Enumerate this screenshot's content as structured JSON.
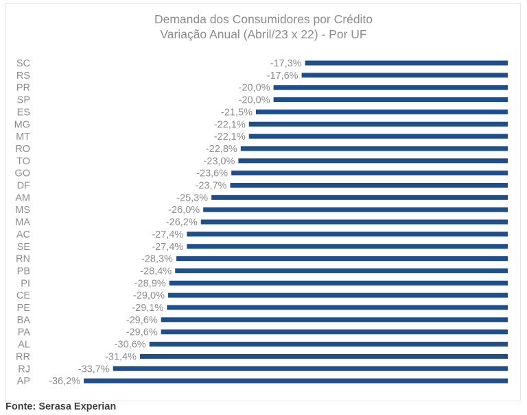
{
  "chart_data": {
    "type": "bar",
    "orientation": "horizontal",
    "title": "Demanda dos Consumidores por Crédito",
    "subtitle": "Variação Anual (Abril/23 x 22) - Por UF",
    "xlabel": "",
    "ylabel": "",
    "grid": false,
    "legend": "none",
    "value_format": "percent-comma-1",
    "categories": [
      "SC",
      "RS",
      "PR",
      "SP",
      "ES",
      "MG",
      "MT",
      "RO",
      "TO",
      "GO",
      "DF",
      "AM",
      "MS",
      "MA",
      "AC",
      "SE",
      "RN",
      "PB",
      "PI",
      "CE",
      "PE",
      "BA",
      "PA",
      "AL",
      "RR",
      "RJ",
      "AP"
    ],
    "values": [
      -17.3,
      -17.6,
      -20.0,
      -20.0,
      -21.5,
      -22.1,
      -22.1,
      -22.8,
      -23.0,
      -23.6,
      -23.7,
      -25.3,
      -26.0,
      -26.2,
      -27.4,
      -27.4,
      -28.3,
      -28.4,
      -28.9,
      -29.0,
      -29.1,
      -29.6,
      -29.6,
      -30.6,
      -31.4,
      -33.7,
      -36.2
    ],
    "labels": [
      "-17,3%",
      "-17,6%",
      "-20,0%",
      "-20,0%",
      "-21,5%",
      "-22,1%",
      "-22,1%",
      "-22,8%",
      "-23,0%",
      "-23,6%",
      "-23,7%",
      "-25,3%",
      "-26,0%",
      "-26,2%",
      "-27,4%",
      "-27,4%",
      "-28,3%",
      "-28,4%",
      "-28,9%",
      "-29,0%",
      "-29,1%",
      "-29,6%",
      "-29,6%",
      "-30,6%",
      "-31,4%",
      "-33,7%",
      "-36,2%"
    ],
    "xlim": [
      -36.2,
      0
    ],
    "bar_color": "#1f4e8c"
  },
  "source": "Fonte: Serasa Experian"
}
